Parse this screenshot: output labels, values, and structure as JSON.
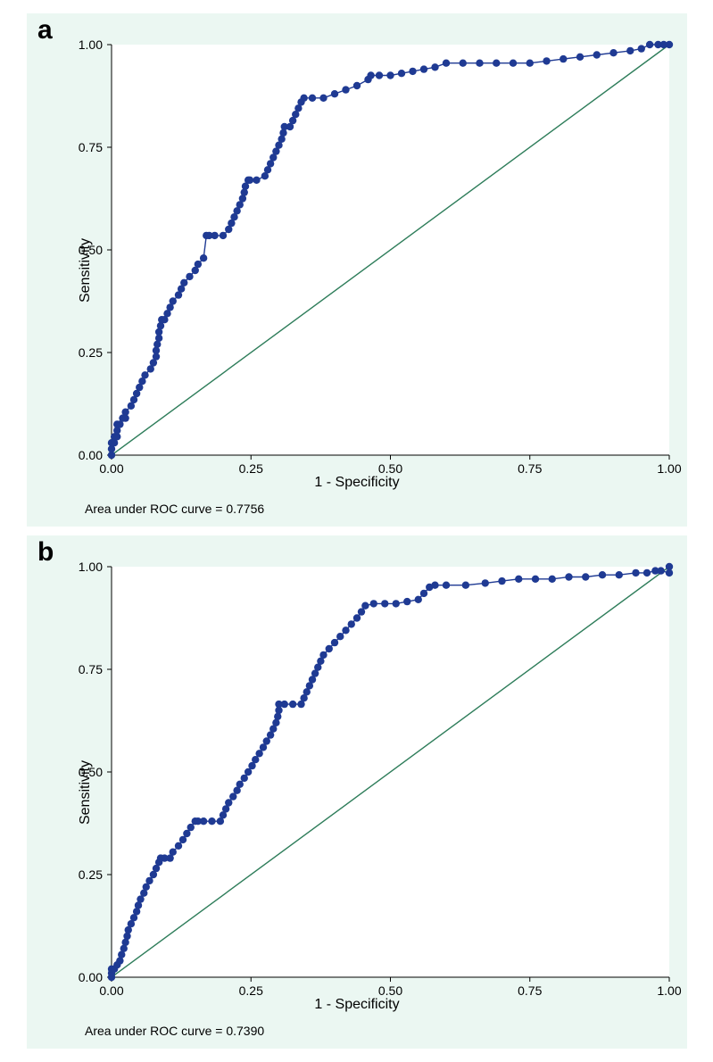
{
  "figure": {
    "background_color": "#ebf7f2",
    "plot_background_color": "#ffffff",
    "panel_label_fontsize": 30,
    "panel_label_fontweight": "bold",
    "ylabel": "Sensitivity",
    "xlabel": "1 - Specificity",
    "label_fontsize": 16,
    "tick_fontsize": 14,
    "caption_fontsize": 14,
    "xlim": [
      0,
      1
    ],
    "ylim": [
      0,
      1
    ],
    "xticks": [
      0.0,
      0.25,
      0.5,
      0.75,
      1.0
    ],
    "yticks": [
      0.0,
      0.25,
      0.5,
      0.75,
      1.0
    ],
    "xtick_labels": [
      "0.00",
      "0.25",
      "0.50",
      "0.75",
      "1.00"
    ],
    "ytick_labels": [
      "0.00",
      "0.25",
      "0.50",
      "0.75",
      "1.00"
    ],
    "roc_line_color": "#1f3a93",
    "roc_marker_color": "#1f3a93",
    "roc_marker_size": 4.2,
    "roc_line_width": 1.4,
    "reference_line_color": "#2e7d5a",
    "reference_line_width": 1.4,
    "axis_color": "#000000",
    "tick_length": 5
  },
  "panel_a": {
    "label": "a",
    "caption": "Area under ROC curve = 0.7756",
    "auc": 0.7756,
    "roc_points": [
      [
        0.0,
        0.0
      ],
      [
        0.0,
        0.015
      ],
      [
        0.0,
        0.03
      ],
      [
        0.005,
        0.03
      ],
      [
        0.005,
        0.045
      ],
      [
        0.01,
        0.045
      ],
      [
        0.01,
        0.06
      ],
      [
        0.01,
        0.075
      ],
      [
        0.015,
        0.075
      ],
      [
        0.02,
        0.09
      ],
      [
        0.025,
        0.09
      ],
      [
        0.025,
        0.105
      ],
      [
        0.035,
        0.12
      ],
      [
        0.04,
        0.135
      ],
      [
        0.045,
        0.15
      ],
      [
        0.05,
        0.165
      ],
      [
        0.055,
        0.18
      ],
      [
        0.06,
        0.195
      ],
      [
        0.07,
        0.21
      ],
      [
        0.075,
        0.225
      ],
      [
        0.08,
        0.24
      ],
      [
        0.08,
        0.255
      ],
      [
        0.082,
        0.27
      ],
      [
        0.085,
        0.285
      ],
      [
        0.085,
        0.3
      ],
      [
        0.088,
        0.315
      ],
      [
        0.09,
        0.33
      ],
      [
        0.095,
        0.33
      ],
      [
        0.1,
        0.345
      ],
      [
        0.105,
        0.36
      ],
      [
        0.11,
        0.375
      ],
      [
        0.12,
        0.39
      ],
      [
        0.125,
        0.405
      ],
      [
        0.13,
        0.42
      ],
      [
        0.14,
        0.435
      ],
      [
        0.15,
        0.45
      ],
      [
        0.155,
        0.465
      ],
      [
        0.165,
        0.48
      ],
      [
        0.17,
        0.535
      ],
      [
        0.175,
        0.535
      ],
      [
        0.185,
        0.535
      ],
      [
        0.2,
        0.535
      ],
      [
        0.21,
        0.55
      ],
      [
        0.215,
        0.565
      ],
      [
        0.22,
        0.58
      ],
      [
        0.225,
        0.595
      ],
      [
        0.23,
        0.61
      ],
      [
        0.235,
        0.625
      ],
      [
        0.238,
        0.64
      ],
      [
        0.24,
        0.655
      ],
      [
        0.245,
        0.67
      ],
      [
        0.248,
        0.67
      ],
      [
        0.26,
        0.67
      ],
      [
        0.275,
        0.68
      ],
      [
        0.28,
        0.695
      ],
      [
        0.285,
        0.71
      ],
      [
        0.29,
        0.725
      ],
      [
        0.295,
        0.74
      ],
      [
        0.3,
        0.755
      ],
      [
        0.305,
        0.77
      ],
      [
        0.308,
        0.785
      ],
      [
        0.31,
        0.8
      ],
      [
        0.32,
        0.8
      ],
      [
        0.325,
        0.815
      ],
      [
        0.33,
        0.83
      ],
      [
        0.335,
        0.845
      ],
      [
        0.34,
        0.86
      ],
      [
        0.345,
        0.87
      ],
      [
        0.36,
        0.87
      ],
      [
        0.38,
        0.87
      ],
      [
        0.4,
        0.88
      ],
      [
        0.42,
        0.89
      ],
      [
        0.44,
        0.9
      ],
      [
        0.46,
        0.915
      ],
      [
        0.465,
        0.925
      ],
      [
        0.48,
        0.925
      ],
      [
        0.5,
        0.925
      ],
      [
        0.52,
        0.93
      ],
      [
        0.54,
        0.935
      ],
      [
        0.56,
        0.94
      ],
      [
        0.58,
        0.945
      ],
      [
        0.6,
        0.955
      ],
      [
        0.63,
        0.955
      ],
      [
        0.66,
        0.955
      ],
      [
        0.69,
        0.955
      ],
      [
        0.72,
        0.955
      ],
      [
        0.75,
        0.955
      ],
      [
        0.78,
        0.96
      ],
      [
        0.81,
        0.965
      ],
      [
        0.84,
        0.97
      ],
      [
        0.87,
        0.975
      ],
      [
        0.9,
        0.98
      ],
      [
        0.93,
        0.985
      ],
      [
        0.95,
        0.99
      ],
      [
        0.965,
        1.0
      ],
      [
        0.98,
        1.0
      ],
      [
        0.99,
        1.0
      ],
      [
        1.0,
        1.0
      ]
    ]
  },
  "panel_b": {
    "label": "b",
    "caption": "Area under ROC curve = 0.7390",
    "auc": 0.739,
    "roc_points": [
      [
        0.0,
        0.0
      ],
      [
        0.0,
        0.01
      ],
      [
        0.0,
        0.02
      ],
      [
        0.005,
        0.02
      ],
      [
        0.01,
        0.03
      ],
      [
        0.015,
        0.04
      ],
      [
        0.018,
        0.055
      ],
      [
        0.022,
        0.07
      ],
      [
        0.025,
        0.085
      ],
      [
        0.028,
        0.1
      ],
      [
        0.03,
        0.115
      ],
      [
        0.035,
        0.13
      ],
      [
        0.04,
        0.145
      ],
      [
        0.045,
        0.16
      ],
      [
        0.048,
        0.175
      ],
      [
        0.052,
        0.19
      ],
      [
        0.058,
        0.205
      ],
      [
        0.062,
        0.22
      ],
      [
        0.068,
        0.235
      ],
      [
        0.075,
        0.25
      ],
      [
        0.08,
        0.265
      ],
      [
        0.085,
        0.28
      ],
      [
        0.088,
        0.29
      ],
      [
        0.095,
        0.29
      ],
      [
        0.105,
        0.29
      ],
      [
        0.11,
        0.305
      ],
      [
        0.12,
        0.32
      ],
      [
        0.128,
        0.335
      ],
      [
        0.135,
        0.35
      ],
      [
        0.142,
        0.365
      ],
      [
        0.15,
        0.38
      ],
      [
        0.155,
        0.38
      ],
      [
        0.165,
        0.38
      ],
      [
        0.18,
        0.38
      ],
      [
        0.195,
        0.38
      ],
      [
        0.2,
        0.395
      ],
      [
        0.205,
        0.41
      ],
      [
        0.21,
        0.425
      ],
      [
        0.218,
        0.44
      ],
      [
        0.225,
        0.455
      ],
      [
        0.23,
        0.47
      ],
      [
        0.238,
        0.485
      ],
      [
        0.245,
        0.5
      ],
      [
        0.252,
        0.515
      ],
      [
        0.258,
        0.53
      ],
      [
        0.265,
        0.545
      ],
      [
        0.272,
        0.56
      ],
      [
        0.278,
        0.575
      ],
      [
        0.285,
        0.59
      ],
      [
        0.29,
        0.605
      ],
      [
        0.295,
        0.62
      ],
      [
        0.298,
        0.635
      ],
      [
        0.3,
        0.65
      ],
      [
        0.3,
        0.665
      ],
      [
        0.31,
        0.665
      ],
      [
        0.325,
        0.665
      ],
      [
        0.34,
        0.665
      ],
      [
        0.345,
        0.68
      ],
      [
        0.35,
        0.695
      ],
      [
        0.355,
        0.71
      ],
      [
        0.36,
        0.725
      ],
      [
        0.365,
        0.74
      ],
      [
        0.37,
        0.755
      ],
      [
        0.375,
        0.77
      ],
      [
        0.38,
        0.785
      ],
      [
        0.39,
        0.8
      ],
      [
        0.4,
        0.815
      ],
      [
        0.41,
        0.83
      ],
      [
        0.42,
        0.845
      ],
      [
        0.43,
        0.86
      ],
      [
        0.44,
        0.875
      ],
      [
        0.448,
        0.89
      ],
      [
        0.455,
        0.905
      ],
      [
        0.47,
        0.91
      ],
      [
        0.49,
        0.91
      ],
      [
        0.51,
        0.91
      ],
      [
        0.53,
        0.915
      ],
      [
        0.55,
        0.92
      ],
      [
        0.56,
        0.935
      ],
      [
        0.57,
        0.95
      ],
      [
        0.58,
        0.955
      ],
      [
        0.6,
        0.955
      ],
      [
        0.635,
        0.955
      ],
      [
        0.67,
        0.96
      ],
      [
        0.7,
        0.965
      ],
      [
        0.73,
        0.97
      ],
      [
        0.76,
        0.97
      ],
      [
        0.79,
        0.97
      ],
      [
        0.82,
        0.975
      ],
      [
        0.85,
        0.975
      ],
      [
        0.88,
        0.98
      ],
      [
        0.91,
        0.98
      ],
      [
        0.94,
        0.985
      ],
      [
        0.96,
        0.985
      ],
      [
        0.975,
        0.99
      ],
      [
        0.985,
        0.99
      ],
      [
        1.0,
        0.985
      ],
      [
        1.0,
        1.0
      ]
    ]
  }
}
